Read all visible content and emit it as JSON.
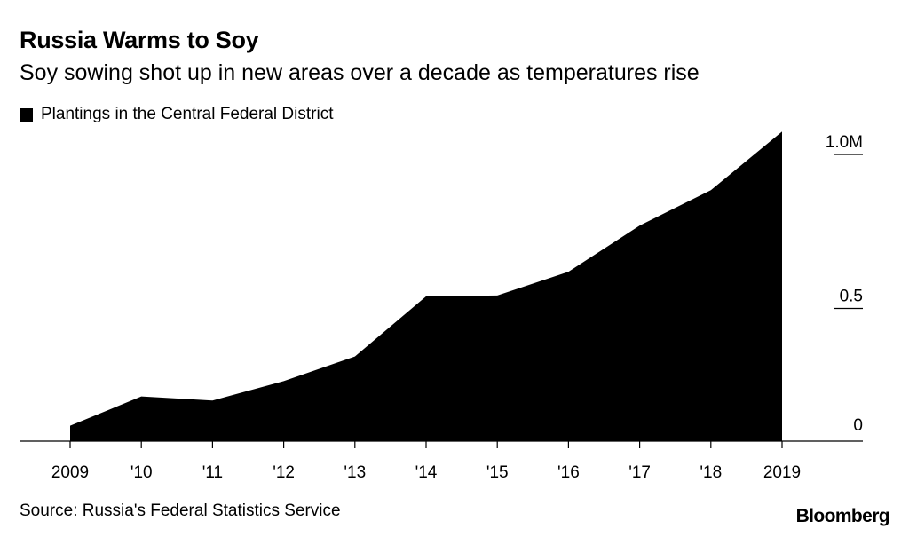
{
  "header": {
    "title": "Russia Warms to Soy",
    "subtitle": "Soy sowing shot up in new areas over a decade as temperatures rise"
  },
  "legend": {
    "label": "Plantings in the Central Federal District"
  },
  "footer": {
    "source": "Source: Russia's Federal Statistics Service",
    "brand": "Bloomberg"
  },
  "colors": {
    "area": "#000000",
    "background": "#ffffff"
  },
  "chart_data": {
    "type": "area",
    "x": [
      2009,
      2010,
      2011,
      2012,
      2013,
      2014,
      2015,
      2016,
      2017,
      2018,
      2019
    ],
    "x_tick_labels": [
      "2009",
      "'10",
      "'11",
      "'12",
      "'13",
      "'14",
      "'15",
      "'16",
      "'17",
      "'18",
      "2019"
    ],
    "series": [
      {
        "name": "Plantings in the Central Federal District",
        "values": [
          0.05,
          0.145,
          0.132,
          0.195,
          0.275,
          0.47,
          0.473,
          0.55,
          0.7,
          0.815,
          1.005
        ]
      }
    ],
    "ylim": [
      0,
      1.0
    ],
    "y_ticks": [
      0,
      0.5,
      1.0
    ],
    "y_tick_labels": [
      "0",
      "0.5",
      "1.0M"
    ],
    "y_axis_side": "right",
    "grid": false,
    "legend_position": "top-left"
  }
}
